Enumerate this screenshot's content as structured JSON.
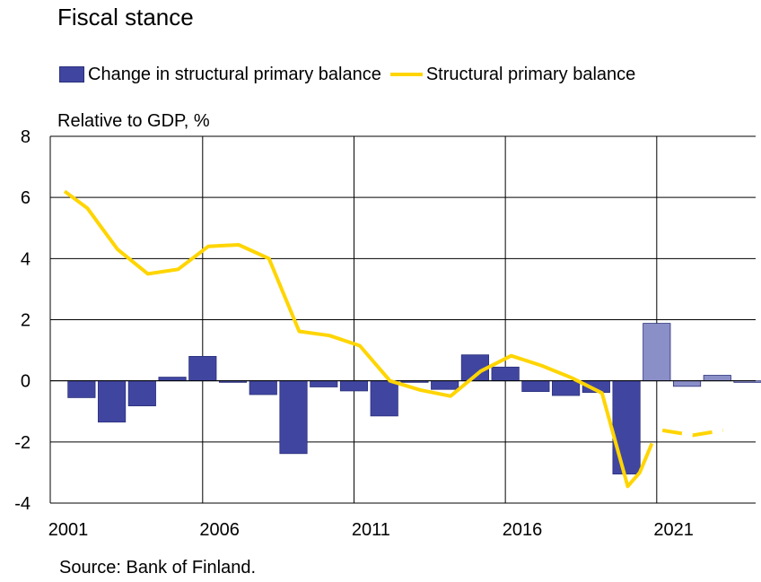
{
  "chart_data": {
    "type": "bar",
    "title": "Fiscal stance",
    "ylabel": "Relative to GDP, %",
    "source": "Source: Bank of Finland.",
    "ylim": [
      -4,
      8
    ],
    "yticks": [
      8,
      6,
      4,
      2,
      0,
      -2,
      -4
    ],
    "xtick_labels": [
      "2001",
      "2006",
      "2011",
      "2016",
      "2021"
    ],
    "grid": true,
    "legend_position": "top",
    "categories": [
      2001,
      2002,
      2003,
      2004,
      2005,
      2006,
      2007,
      2008,
      2009,
      2010,
      2011,
      2012,
      2013,
      2014,
      2015,
      2016,
      2017,
      2018,
      2019,
      2020,
      2021,
      2022,
      2023
    ],
    "forecast_from": 2021,
    "series": [
      {
        "name": "Change in structural primary balance",
        "kind": "bar",
        "color": "#4046a0",
        "forecast_color": "#8a8fc8",
        "values": [
          -0.55,
          -1.35,
          -0.82,
          0.12,
          0.8,
          -0.05,
          -0.45,
          -2.38,
          -0.2,
          -0.33,
          -1.15,
          -0.05,
          -0.28,
          0.85,
          0.45,
          -0.35,
          -0.48,
          -0.38,
          -3.05,
          1.88,
          -0.18,
          0.18,
          -0.05
        ]
      },
      {
        "name": "Structural primary balance",
        "kind": "line",
        "color": "#ffd500",
        "x": [
          2001,
          2001.75,
          2002.75,
          2003.75,
          2004.75,
          2005.75,
          2006.75,
          2007.75,
          2008.75,
          2009.75,
          2010.75,
          2011.75,
          2012.75,
          2013.75,
          2014.75,
          2015.75,
          2016.75,
          2017.75,
          2018.75,
          2019.6,
          2020.0,
          2020.4
        ],
        "values": [
          6.2,
          5.65,
          4.3,
          3.5,
          3.65,
          4.4,
          4.45,
          4.0,
          1.62,
          1.48,
          1.15,
          0.0,
          -0.3,
          -0.5,
          0.32,
          0.82,
          0.5,
          0.1,
          -0.4,
          -3.45,
          -3.0,
          -2.05
        ],
        "forecast_x": [
          2020.75,
          2021.75,
          2022.75
        ],
        "forecast_values": [
          -1.62,
          -1.78,
          -1.62
        ]
      }
    ]
  }
}
